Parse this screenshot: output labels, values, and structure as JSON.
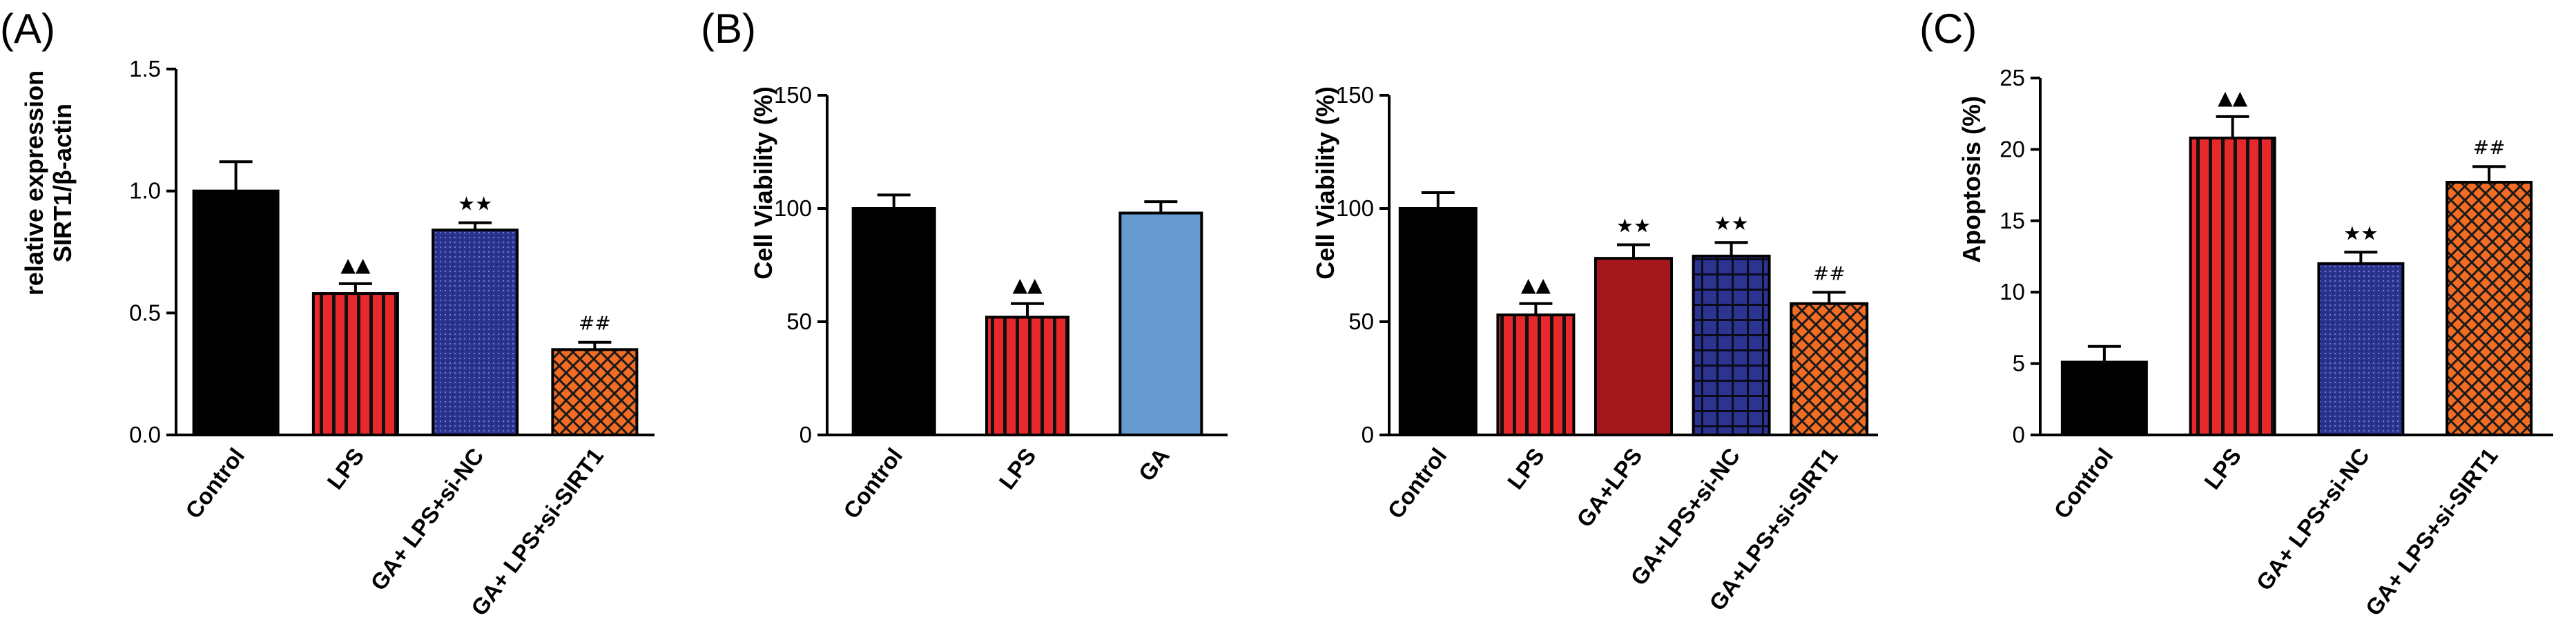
{
  "chart_data": [
    {
      "type": "bar",
      "panel_label": "(A)",
      "title": "",
      "xlabel": "",
      "ylabel": "relative expression SIRT1/β-actin",
      "ylabel_lines": [
        "relative expression",
        "SIRT1/β-actin"
      ],
      "ylim": [
        0,
        1.5
      ],
      "yticks": [
        "0.0",
        "0.5",
        "1.0",
        "1.5"
      ],
      "ytick_values": [
        0,
        0.5,
        1.0,
        1.5
      ],
      "categories": [
        "Control",
        "LPS",
        "GA+ LPS+si-NC",
        "GA+ LPS+si-SIRT1"
      ],
      "values": [
        1.0,
        0.58,
        0.84,
        0.35
      ],
      "errors": [
        0.12,
        0.04,
        0.03,
        0.03
      ],
      "annotations": [
        "",
        "▲▲",
        "★★",
        "##"
      ],
      "fills": [
        "solid-black",
        "red-vertical-stripes",
        "blue-dots",
        "orange-crosshatch"
      ]
    },
    {
      "type": "bar",
      "panel_label": "(B)",
      "title": "",
      "xlabel": "",
      "ylabel": "Cell Viability (%)",
      "ylabel_lines": [
        "Cell Viability (%)"
      ],
      "ylim": [
        0,
        150
      ],
      "yticks": [
        "0",
        "50",
        "100",
        "150"
      ],
      "ytick_values": [
        0,
        50,
        100,
        150
      ],
      "categories": [
        "Control",
        "LPS",
        "GA"
      ],
      "values": [
        100,
        52,
        98
      ],
      "errors": [
        6,
        6,
        5
      ],
      "annotations": [
        "",
        "▲▲",
        ""
      ],
      "fills": [
        "solid-black",
        "red-vertical-stripes",
        "solid-lightblue"
      ]
    },
    {
      "type": "bar",
      "panel_label": "",
      "title": "",
      "xlabel": "",
      "ylabel": "Cell Viability (%)",
      "ylabel_lines": [
        "Cell Viability (%)"
      ],
      "ylim": [
        0,
        150
      ],
      "yticks": [
        "0",
        "50",
        "100",
        "150"
      ],
      "ytick_values": [
        0,
        50,
        100,
        150
      ],
      "categories": [
        "Control",
        "LPS",
        "GA+LPS",
        "GA+LPS+si-NC",
        "GA+LPS+si-SIRT1"
      ],
      "values": [
        100,
        53,
        78,
        79,
        58
      ],
      "errors": [
        7,
        5,
        6,
        6,
        5
      ],
      "annotations": [
        "",
        "▲▲",
        "★★",
        "★★",
        "##"
      ],
      "fills": [
        "solid-black",
        "red-vertical-stripes",
        "solid-darkred",
        "blue-grid",
        "orange-crosshatch"
      ]
    },
    {
      "type": "bar",
      "panel_label": "(C)",
      "title": "",
      "xlabel": "",
      "ylabel": "Apoptosis (%)",
      "ylabel_lines": [
        "Apoptosis (%)"
      ],
      "ylim": [
        0,
        25
      ],
      "yticks": [
        "0",
        "5",
        "10",
        "15",
        "20",
        "25"
      ],
      "ytick_values": [
        0,
        5,
        10,
        15,
        20,
        25
      ],
      "categories": [
        "Control",
        "LPS",
        "GA+ LPS+si-NC",
        "GA+ LPS+si-SIRT1"
      ],
      "values": [
        5.1,
        20.8,
        12.0,
        17.7
      ],
      "errors": [
        1.1,
        1.5,
        0.8,
        1.1
      ],
      "annotations": [
        "",
        "▲▲",
        "★★",
        "##"
      ],
      "fills": [
        "solid-black",
        "red-vertical-stripes",
        "blue-dots",
        "orange-crosshatch"
      ]
    }
  ],
  "colors": {
    "black": "#000000",
    "red": "#e8292b",
    "blue": "#2b3490",
    "lightblue": "#6699d0",
    "darkred": "#a3171d",
    "orange": "#f26c23"
  }
}
